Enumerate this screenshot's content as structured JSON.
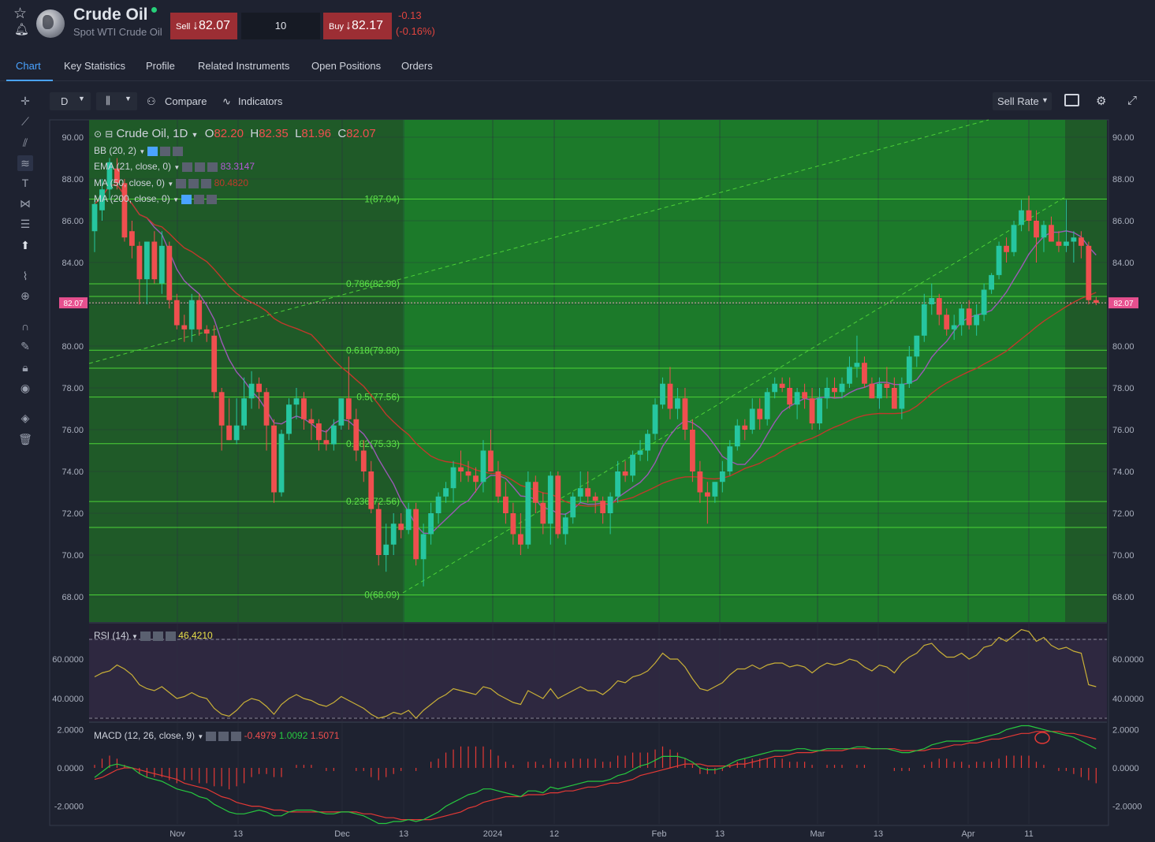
{
  "instrument": {
    "title": "Crude Oil",
    "subtitle": "Spot WTI Crude Oil",
    "sell_label": "Sell",
    "sell_price": "↓82.07",
    "buy_label": "Buy",
    "buy_price": "↓82.17",
    "quantity": "10",
    "change": "-0.13",
    "change_pct": "(-0.16%)"
  },
  "tabs": [
    "Chart",
    "Key Statistics",
    "Profile",
    "Related Instruments",
    "Open Positions",
    "Orders"
  ],
  "toolbar": {
    "timeframe": "D",
    "compare": "Compare",
    "indicators": "Indicators",
    "rate": "Sell Rate"
  },
  "overlay": {
    "symbol": "Crude Oil, 1D",
    "o_label": "O",
    "o": "82.20",
    "h_label": "H",
    "h": "82.35",
    "l_label": "L",
    "l": "81.96",
    "c_label": "C",
    "c": "82.07",
    "bb": "BB (20, 2)",
    "ema": "EMA (21, close, 0)",
    "ema_val": "83.3147",
    "ma50": "MA (50, close, 0)",
    "ma50_val": "80.4820",
    "ma200": "MA (200, close, 0)",
    "rsi": "RSI (14)",
    "rsi_val": "46.4210",
    "macd": "MACD (12, 26, close, 9)",
    "macd_v1": "-0.4979",
    "macd_v2": "1.0092",
    "macd_v3": "1.5071"
  },
  "colors": {
    "up": "#26c6a0",
    "down": "#ef4f4f",
    "fib_zone": "#1c7a2a",
    "fib_line": "#4cd137",
    "ema": "#9b59b6",
    "ma50": "#c0392b",
    "rsi": "#c9b037",
    "macd": "#27c93f",
    "signal": "#e53935"
  },
  "chart_data": {
    "type": "candlestick",
    "title": "Crude Oil, 1D",
    "y_ticks": [
      90,
      88,
      86,
      84,
      82,
      80,
      78,
      76,
      74,
      72,
      70,
      68
    ],
    "y_tick_labels": [
      "90.00",
      "88.00",
      "86.00",
      "84.00",
      "82.00",
      "80.00",
      "78.00",
      "76.00",
      "74.00",
      "72.00",
      "70.00",
      "68.00"
    ],
    "current_price": "82.07",
    "x_labels": [
      "Nov",
      "13",
      "Dec",
      "13",
      "2024",
      "12",
      "Feb",
      "13",
      "Mar",
      "13",
      "Apr",
      "11"
    ],
    "candles": [
      [
        85.5,
        87.0,
        84.5,
        86.8
      ],
      [
        86.5,
        88.0,
        86.0,
        87.5
      ],
      [
        87.5,
        89.0,
        87.0,
        88.8
      ],
      [
        88.5,
        89.0,
        87.5,
        87.8
      ],
      [
        87.8,
        88.0,
        85.0,
        85.2
      ],
      [
        85.5,
        86.0,
        84.2,
        84.8
      ],
      [
        84.8,
        85.0,
        82.0,
        83.2
      ],
      [
        83.2,
        85.0,
        82.0,
        85.0
      ],
      [
        85.0,
        85.5,
        83.0,
        83.2
      ],
      [
        83.0,
        85.5,
        82.5,
        84.8
      ],
      [
        84.8,
        85.0,
        81.8,
        82.2
      ],
      [
        82.2,
        82.5,
        80.8,
        81.0
      ],
      [
        81.0,
        81.5,
        80.2,
        80.8
      ],
      [
        80.8,
        82.5,
        80.2,
        82.2
      ],
      [
        82.2,
        82.5,
        80.5,
        80.8
      ],
      [
        80.8,
        81.0,
        80.2,
        80.6
      ],
      [
        80.5,
        81.0,
        77.5,
        77.8
      ],
      [
        77.8,
        78.0,
        75.0,
        76.2
      ],
      [
        76.2,
        77.5,
        75.5,
        75.5
      ],
      [
        75.5,
        77.5,
        75.3,
        76.2
      ],
      [
        76.2,
        78.5,
        76.0,
        77.5
      ],
      [
        77.5,
        78.8,
        77.0,
        78.2
      ],
      [
        78.2,
        78.5,
        77.0,
        77.8
      ],
      [
        77.8,
        78.0,
        75.0,
        76.2
      ],
      [
        76.2,
        76.5,
        72.5,
        73.0
      ],
      [
        73.0,
        76.0,
        72.8,
        75.8
      ],
      [
        75.8,
        77.5,
        75.5,
        77.2
      ],
      [
        77.2,
        78.0,
        76.5,
        77.5
      ],
      [
        77.5,
        77.8,
        76.0,
        76.5
      ],
      [
        76.5,
        77.0,
        75.5,
        76.3
      ],
      [
        76.3,
        76.5,
        75.0,
        75.5
      ],
      [
        75.5,
        76.0,
        75.0,
        75.3
      ],
      [
        75.3,
        76.5,
        75.0,
        76.2
      ],
      [
        76.2,
        77.5,
        76.0,
        77.5
      ],
      [
        77.5,
        79.5,
        76.0,
        76.5
      ],
      [
        76.5,
        77.0,
        74.5,
        75.0
      ],
      [
        75.0,
        75.5,
        73.5,
        74.0
      ],
      [
        74.0,
        74.5,
        72.0,
        72.2
      ],
      [
        72.2,
        72.5,
        69.5,
        70.0
      ],
      [
        70.0,
        71.5,
        69.2,
        70.5
      ],
      [
        70.5,
        72.0,
        70.0,
        71.5
      ],
      [
        71.5,
        72.0,
        70.8,
        71.2
      ],
      [
        71.2,
        72.5,
        71.0,
        72.2
      ],
      [
        72.2,
        72.5,
        69.5,
        69.8
      ],
      [
        69.8,
        71.5,
        68.5,
        71.0
      ],
      [
        71.0,
        72.5,
        70.5,
        72.0
      ],
      [
        72.0,
        73.0,
        71.5,
        72.8
      ],
      [
        72.8,
        73.5,
        72.5,
        73.2
      ],
      [
        73.2,
        74.5,
        72.5,
        74.2
      ],
      [
        74.2,
        75.0,
        73.5,
        74.0
      ],
      [
        74.0,
        74.5,
        73.5,
        73.8
      ],
      [
        73.8,
        74.2,
        73.0,
        73.5
      ],
      [
        73.5,
        75.5,
        73.0,
        75.0
      ],
      [
        75.0,
        76.0,
        74.0,
        74.0
      ],
      [
        74.0,
        74.5,
        72.5,
        72.8
      ],
      [
        72.8,
        73.5,
        71.5,
        72.0
      ],
      [
        72.0,
        72.5,
        70.5,
        71.0
      ],
      [
        71.0,
        72.0,
        70.0,
        70.5
      ],
      [
        70.5,
        74.0,
        70.3,
        73.5
      ],
      [
        73.5,
        73.8,
        72.0,
        72.5
      ],
      [
        72.5,
        73.0,
        71.0,
        71.5
      ],
      [
        71.5,
        74.0,
        70.5,
        73.8
      ],
      [
        73.8,
        74.0,
        70.8,
        71.0
      ],
      [
        71.0,
        72.0,
        70.5,
        71.8
      ],
      [
        71.8,
        73.0,
        71.5,
        72.8
      ],
      [
        72.8,
        74.0,
        72.5,
        73.2
      ],
      [
        73.2,
        74.0,
        72.5,
        72.8
      ],
      [
        72.8,
        73.0,
        72.0,
        72.6
      ],
      [
        72.6,
        72.8,
        71.5,
        72.0
      ],
      [
        72.0,
        73.0,
        71.0,
        72.8
      ],
      [
        72.8,
        74.5,
        72.5,
        74.0
      ],
      [
        74.0,
        74.5,
        73.5,
        73.8
      ],
      [
        73.8,
        75.0,
        73.5,
        74.8
      ],
      [
        74.8,
        75.5,
        74.5,
        75.0
      ],
      [
        75.0,
        76.0,
        74.5,
        75.8
      ],
      [
        75.8,
        77.5,
        75.5,
        77.2
      ],
      [
        77.2,
        78.5,
        77.0,
        78.2
      ],
      [
        78.2,
        79.0,
        76.5,
        77.0
      ],
      [
        77.0,
        78.0,
        76.5,
        77.5
      ],
      [
        77.5,
        78.0,
        75.5,
        76.0
      ],
      [
        76.0,
        76.5,
        73.5,
        74.0
      ],
      [
        74.0,
        74.5,
        72.5,
        73.0
      ],
      [
        73.0,
        73.5,
        71.5,
        72.8
      ],
      [
        72.8,
        73.5,
        72.5,
        73.5
      ],
      [
        73.5,
        74.5,
        73.0,
        74.0
      ],
      [
        74.0,
        75.5,
        73.8,
        75.2
      ],
      [
        75.2,
        76.5,
        75.0,
        76.2
      ],
      [
        76.2,
        76.5,
        75.5,
        76.0
      ],
      [
        76.0,
        77.5,
        75.8,
        77.0
      ],
      [
        77.0,
        77.5,
        76.0,
        76.5
      ],
      [
        76.5,
        78.0,
        76.2,
        77.8
      ],
      [
        77.8,
        78.5,
        77.5,
        78.2
      ],
      [
        78.2,
        78.5,
        77.8,
        78.0
      ],
      [
        78.0,
        78.5,
        77.0,
        77.2
      ],
      [
        77.2,
        78.0,
        76.5,
        77.8
      ],
      [
        77.8,
        78.2,
        77.0,
        77.5
      ],
      [
        77.5,
        78.0,
        76.0,
        76.3
      ],
      [
        76.3,
        78.0,
        76.0,
        77.5
      ],
      [
        77.5,
        78.5,
        77.0,
        78.0
      ],
      [
        78.0,
        78.5,
        77.5,
        77.8
      ],
      [
        77.8,
        78.5,
        77.5,
        78.2
      ],
      [
        78.2,
        79.5,
        78.0,
        79.0
      ],
      [
        79.0,
        80.5,
        78.5,
        79.2
      ],
      [
        79.2,
        79.5,
        78.0,
        78.2
      ],
      [
        78.2,
        78.5,
        77.5,
        77.5
      ],
      [
        77.5,
        78.5,
        77.0,
        78.2
      ],
      [
        78.2,
        79.0,
        77.5,
        78.0
      ],
      [
        78.0,
        78.5,
        77.0,
        77.0
      ],
      [
        77.0,
        78.5,
        76.5,
        78.2
      ],
      [
        78.2,
        80.0,
        78.0,
        79.5
      ],
      [
        79.5,
        80.5,
        79.0,
        80.5
      ],
      [
        80.5,
        82.5,
        80.2,
        82.0
      ],
      [
        82.0,
        83.0,
        81.5,
        82.3
      ],
      [
        82.3,
        82.5,
        81.0,
        81.5
      ],
      [
        81.5,
        81.8,
        80.5,
        80.8
      ],
      [
        80.8,
        81.5,
        80.3,
        81.0
      ],
      [
        81.0,
        82.0,
        80.5,
        81.8
      ],
      [
        81.8,
        82.2,
        80.8,
        81.0
      ],
      [
        81.0,
        82.0,
        80.5,
        81.5
      ],
      [
        81.5,
        83.0,
        81.2,
        82.7
      ],
      [
        82.7,
        83.5,
        82.5,
        83.4
      ],
      [
        83.4,
        85.0,
        83.2,
        84.8
      ],
      [
        84.8,
        85.2,
        84.0,
        84.5
      ],
      [
        84.5,
        86.0,
        84.3,
        85.8
      ],
      [
        85.8,
        87.0,
        85.5,
        86.5
      ],
      [
        86.5,
        87.2,
        85.5,
        86.0
      ],
      [
        86.0,
        86.5,
        84.0,
        85.2
      ],
      [
        85.2,
        86.0,
        84.5,
        85.8
      ],
      [
        85.8,
        86.2,
        85.0,
        85.0
      ],
      [
        85.0,
        85.5,
        84.5,
        84.8
      ],
      [
        84.8,
        87.0,
        84.5,
        85.0
      ],
      [
        85.0,
        85.5,
        84.0,
        85.2
      ],
      [
        85.2,
        85.5,
        84.2,
        84.8
      ],
      [
        84.8,
        85.0,
        82.0,
        82.2
      ],
      [
        82.2,
        82.35,
        81.96,
        82.07
      ]
    ],
    "fibonacci": [
      {
        "label": "1(87.04)",
        "value": 87.04
      },
      {
        "label": "0.786(82.98)",
        "value": 82.98
      },
      {
        "label": "0.618(79.80)",
        "value": 79.8
      },
      {
        "label": "0.5(77.56)",
        "value": 77.56
      },
      {
        "label": "0.382(75.33)",
        "value": 75.33
      },
      {
        "label": "0.236(72.56)",
        "value": 72.56
      },
      {
        "label": "0(68.09)",
        "value": 68.09
      }
    ],
    "rsi": {
      "ticks": [
        "60.0000",
        "40.0000"
      ],
      "values": [
        51,
        53,
        54,
        57,
        55,
        52,
        47,
        45,
        44,
        46,
        43,
        40,
        41,
        43,
        41,
        40,
        35,
        32,
        31,
        34,
        38,
        40,
        39,
        36,
        32,
        37,
        40,
        42,
        40,
        39,
        37,
        36,
        38,
        41,
        39,
        37,
        35,
        32,
        30,
        31,
        33,
        32,
        34,
        30,
        34,
        37,
        40,
        42,
        45,
        44,
        43,
        42,
        46,
        45,
        42,
        40,
        38,
        37,
        44,
        42,
        40,
        45,
        40,
        42,
        44,
        46,
        44,
        44,
        42,
        45,
        49,
        48,
        51,
        52,
        54,
        58,
        63,
        60,
        60,
        56,
        50,
        45,
        44,
        46,
        48,
        52,
        55,
        55,
        57,
        55,
        57,
        58,
        58,
        56,
        57,
        56,
        53,
        56,
        58,
        57,
        58,
        60,
        59,
        56,
        54,
        57,
        56,
        53,
        58,
        61,
        63,
        67,
        68,
        64,
        61,
        61,
        63,
        60,
        62,
        66,
        67,
        71,
        69,
        72,
        75,
        74,
        69,
        71,
        67,
        65,
        66,
        64,
        63,
        47,
        46
      ]
    },
    "macd": {
      "ticks": [
        "2.0000",
        "0.0000",
        "-2.0000"
      ],
      "macd": [
        -0.5,
        -0.2,
        0.1,
        0.2,
        0.1,
        0.0,
        -0.3,
        -0.5,
        -0.6,
        -0.7,
        -0.9,
        -1.1,
        -1.2,
        -1.3,
        -1.5,
        -1.6,
        -1.9,
        -2.1,
        -2.3,
        -2.4,
        -2.4,
        -2.3,
        -2.2,
        -2.3,
        -2.5,
        -2.5,
        -2.3,
        -2.2,
        -2.2,
        -2.2,
        -2.3,
        -2.4,
        -2.4,
        -2.3,
        -2.3,
        -2.4,
        -2.5,
        -2.7,
        -2.9,
        -2.9,
        -2.8,
        -2.8,
        -2.7,
        -2.8,
        -2.7,
        -2.5,
        -2.3,
        -2.0,
        -1.8,
        -1.6,
        -1.4,
        -1.3,
        -1.1,
        -1.1,
        -1.2,
        -1.3,
        -1.4,
        -1.5,
        -1.2,
        -1.2,
        -1.3,
        -1.0,
        -1.1,
        -1.0,
        -0.9,
        -0.8,
        -0.7,
        -0.7,
        -0.7,
        -0.6,
        -0.4,
        -0.3,
        -0.1,
        0.1,
        0.2,
        0.4,
        0.6,
        0.6,
        0.6,
        0.5,
        0.3,
        0.0,
        -0.1,
        -0.1,
        0.0,
        0.2,
        0.4,
        0.5,
        0.6,
        0.7,
        0.8,
        0.9,
        0.9,
        0.9,
        1.0,
        1.0,
        0.9,
        0.9,
        1.0,
        1.0,
        1.0,
        1.0,
        1.1,
        1.1,
        1.0,
        1.0,
        1.0,
        0.9,
        0.8,
        0.8,
        0.9,
        1.0,
        1.2,
        1.3,
        1.4,
        1.4,
        1.4,
        1.4,
        1.5,
        1.6,
        1.7,
        1.8,
        2.0,
        2.1,
        2.2,
        2.2,
        2.1,
        2.0,
        1.9,
        1.8,
        1.7,
        1.6,
        1.4,
        1.2,
        1.0
      ],
      "signal": [
        -0.6,
        -0.5,
        -0.3,
        -0.1,
        0.0,
        0.0,
        -0.1,
        -0.2,
        -0.3,
        -0.4,
        -0.5,
        -0.6,
        -0.8,
        -0.9,
        -1.0,
        -1.1,
        -1.3,
        -1.5,
        -1.6,
        -1.8,
        -1.9,
        -2.0,
        -2.0,
        -2.1,
        -2.2,
        -2.2,
        -2.3,
        -2.3,
        -2.3,
        -2.3,
        -2.3,
        -2.3,
        -2.3,
        -2.3,
        -2.3,
        -2.3,
        -2.4,
        -2.4,
        -2.5,
        -2.6,
        -2.6,
        -2.7,
        -2.7,
        -2.7,
        -2.7,
        -2.7,
        -2.6,
        -2.5,
        -2.4,
        -2.3,
        -2.1,
        -2.0,
        -1.8,
        -1.7,
        -1.6,
        -1.5,
        -1.5,
        -1.5,
        -1.4,
        -1.4,
        -1.4,
        -1.3,
        -1.3,
        -1.2,
        -1.2,
        -1.1,
        -1.0,
        -1.0,
        -0.9,
        -0.8,
        -0.8,
        -0.7,
        -0.6,
        -0.4,
        -0.3,
        -0.2,
        -0.1,
        0.0,
        0.1,
        0.2,
        0.2,
        0.2,
        0.1,
        0.1,
        0.1,
        0.1,
        0.2,
        0.2,
        0.3,
        0.4,
        0.5,
        0.6,
        0.6,
        0.7,
        0.8,
        0.8,
        0.8,
        0.9,
        0.9,
        0.9,
        0.9,
        1.0,
        1.0,
        1.0,
        1.0,
        1.0,
        1.0,
        1.0,
        0.9,
        0.9,
        0.9,
        0.9,
        1.0,
        1.0,
        1.1,
        1.2,
        1.2,
        1.3,
        1.3,
        1.4,
        1.5,
        1.5,
        1.6,
        1.7,
        1.8,
        1.8,
        1.9,
        1.9,
        1.9,
        1.9,
        1.8,
        1.8,
        1.7,
        1.6,
        1.5
      ]
    }
  }
}
